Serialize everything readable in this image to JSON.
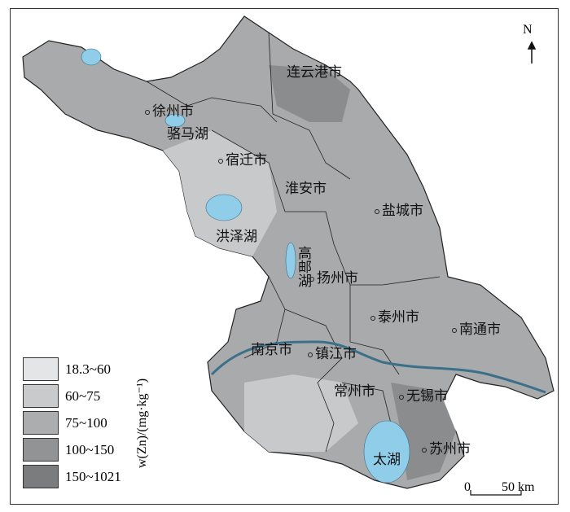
{
  "map": {
    "colors": {
      "fill": "#a9aaab",
      "dark": "#8b8c8d",
      "light": "#c8c9ca",
      "water": "#8fcde8",
      "border": "#222222"
    },
    "labels": [
      {
        "name": "连云港市",
        "city": true
      },
      {
        "name": "徐州市",
        "city": true
      },
      {
        "name": "骆马湖",
        "city": false
      },
      {
        "name": "宿迁市",
        "city": true
      },
      {
        "name": "淮安市",
        "city": true
      },
      {
        "name": "盐城市",
        "city": true
      },
      {
        "name": "洪泽湖",
        "city": false
      },
      {
        "name": "高邮湖",
        "city": false
      },
      {
        "name": "扬州市",
        "city": true
      },
      {
        "name": "泰州市",
        "city": true
      },
      {
        "name": "南通市",
        "city": true
      },
      {
        "name": "南京市",
        "city": true
      },
      {
        "name": "镇江市",
        "city": true
      },
      {
        "name": "常州市",
        "city": true
      },
      {
        "name": "无锡市",
        "city": true
      },
      {
        "name": "太湖",
        "city": false
      },
      {
        "name": "苏州市",
        "city": true
      }
    ]
  },
  "legend": {
    "unit_label": "w(Zn)/(mg·kg⁻¹)",
    "items": [
      {
        "label": "18.3~60",
        "color": "#e4e5e6"
      },
      {
        "label": "60~75",
        "color": "#c9cacb"
      },
      {
        "label": "75~100",
        "color": "#acadae"
      },
      {
        "label": "100~150",
        "color": "#929394"
      },
      {
        "label": "150~1021",
        "color": "#7b7c7d"
      }
    ]
  },
  "north_arrow": {
    "label": "N"
  },
  "scale_bar": {
    "start": "0",
    "end": "50 km"
  }
}
